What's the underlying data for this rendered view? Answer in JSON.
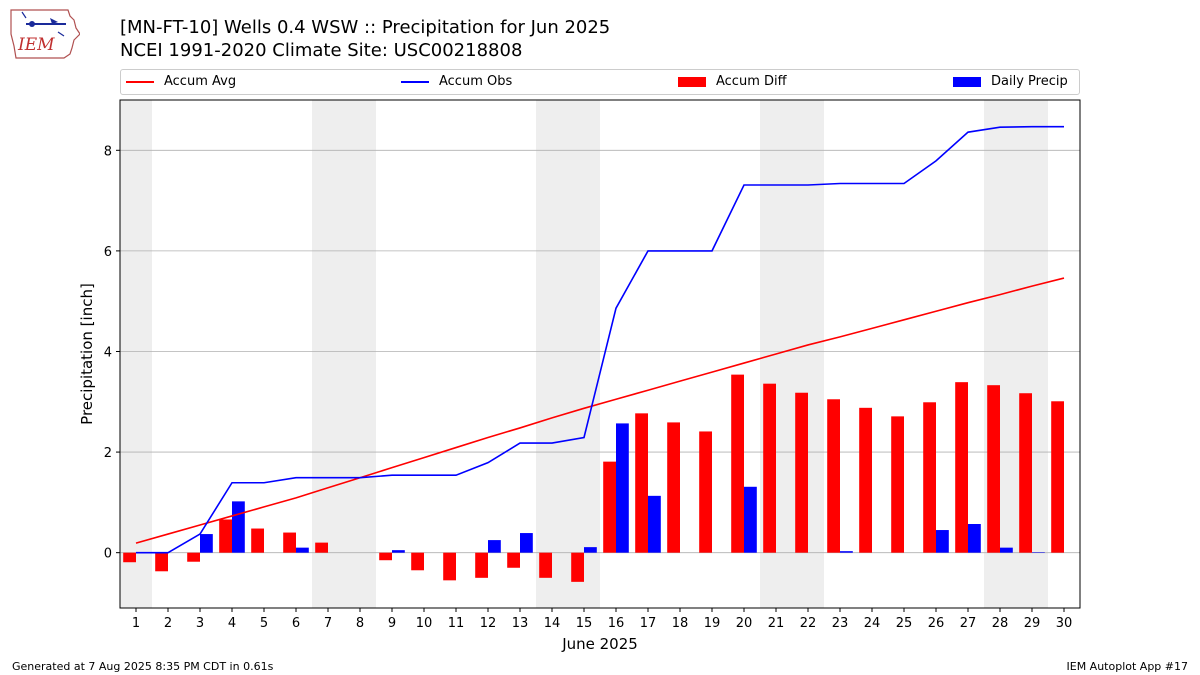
{
  "header": {
    "title": "[MN-FT-10] Wells 0.4 WSW :: Precipitation for Jun 2025",
    "subtitle": "NCEI 1991-2020 Climate Site: USC00218808"
  },
  "logo": {
    "text": "IEM",
    "icon": "iowa-state-outline-logo"
  },
  "footer": {
    "left": "Generated at 7 Aug 2025 8:35 PM CDT in 0.61s",
    "right": "IEM Autoplot App #17"
  },
  "chart_data": {
    "type": "bar",
    "xlabel": "June 2025",
    "ylabel": "Precipitation [inch]",
    "xlim": [
      0.5,
      30.5
    ],
    "ylim": [
      -1.1,
      9.0
    ],
    "yticks": [
      0,
      2,
      4,
      6,
      8
    ],
    "grid": "y",
    "legend_placement": "top",
    "weekend_shading": [
      [
        0.5,
        1.5
      ],
      [
        6.5,
        8.5
      ],
      [
        13.5,
        15.5
      ],
      [
        20.5,
        22.5
      ],
      [
        27.5,
        29.5
      ]
    ],
    "categories": [
      "1",
      "2",
      "3",
      "4",
      "5",
      "6",
      "7",
      "8",
      "9",
      "10",
      "11",
      "12",
      "13",
      "14",
      "15",
      "16",
      "17",
      "18",
      "19",
      "20",
      "21",
      "22",
      "23",
      "24",
      "25",
      "26",
      "27",
      "28",
      "29",
      "30"
    ],
    "series": [
      {
        "name": "Accum Avg",
        "kind": "line",
        "color": "#ff0000",
        "values": [
          0.19,
          0.37,
          0.55,
          0.73,
          0.91,
          1.09,
          1.29,
          1.49,
          1.69,
          1.89,
          2.09,
          2.29,
          2.48,
          2.68,
          2.87,
          3.05,
          3.23,
          3.41,
          3.59,
          3.77,
          3.95,
          4.13,
          4.29,
          4.46,
          4.63,
          4.8,
          4.97,
          5.13,
          5.3,
          5.46
        ]
      },
      {
        "name": "Accum Obs",
        "kind": "line",
        "color": "#0000ff",
        "values": [
          0.0,
          0.0,
          0.37,
          1.39,
          1.39,
          1.49,
          1.49,
          1.49,
          1.54,
          1.54,
          1.54,
          1.79,
          2.18,
          2.18,
          2.29,
          4.86,
          6.0,
          6.0,
          6.0,
          7.31,
          7.31,
          7.31,
          7.34,
          7.34,
          7.34,
          7.79,
          8.36,
          8.46,
          8.47,
          8.47
        ]
      },
      {
        "name": "Accum Diff",
        "kind": "bar",
        "color": "#ff0000",
        "values": [
          -0.19,
          -0.37,
          -0.18,
          0.66,
          0.48,
          0.4,
          0.2,
          0.0,
          -0.15,
          -0.35,
          -0.55,
          -0.5,
          -0.3,
          -0.5,
          -0.58,
          1.81,
          2.77,
          2.59,
          2.41,
          3.54,
          3.36,
          3.18,
          3.05,
          2.88,
          2.71,
          2.99,
          3.39,
          3.33,
          3.17,
          3.01
        ]
      },
      {
        "name": "Daily Precip",
        "kind": "bar",
        "color": "#0000ff",
        "values": [
          0.0,
          0.0,
          0.37,
          1.02,
          0.0,
          0.1,
          0.0,
          0.0,
          0.05,
          0.0,
          0.0,
          0.25,
          0.39,
          0.0,
          0.11,
          2.57,
          1.13,
          0.0,
          0.0,
          1.31,
          0.0,
          0.0,
          0.03,
          0.0,
          0.0,
          0.45,
          0.57,
          0.1,
          0.01,
          0.0
        ]
      }
    ]
  }
}
